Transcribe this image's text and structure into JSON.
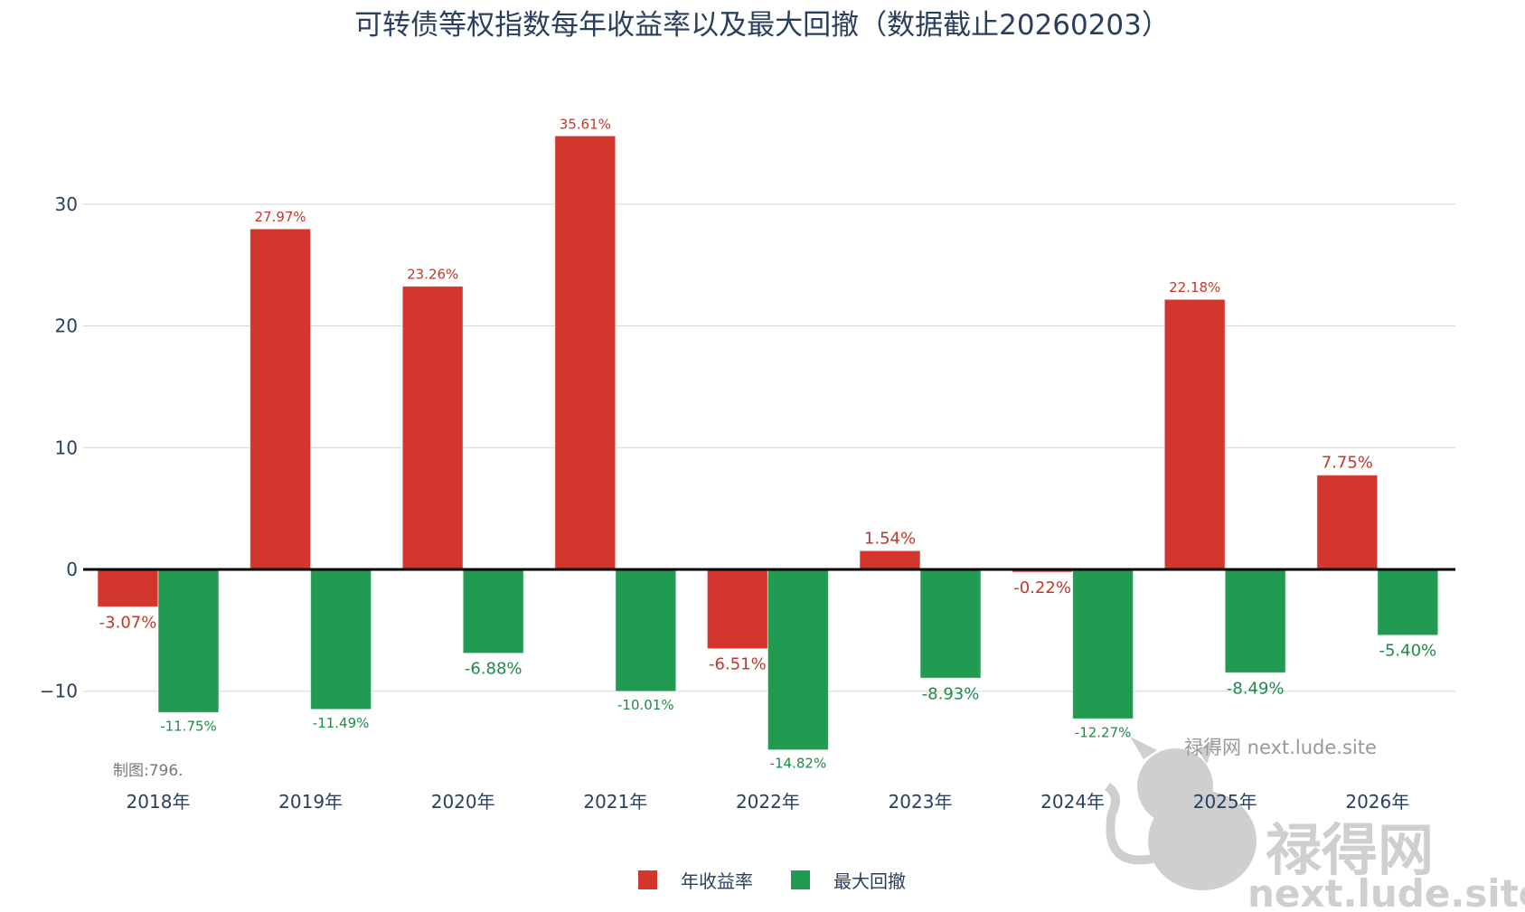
{
  "chart_data": {
    "type": "bar",
    "title": "可转债等权指数每年收益率以及最大回撤（数据截止20260203）",
    "categories": [
      "2018年",
      "2019年",
      "2020年",
      "2021年",
      "2022年",
      "2023年",
      "2024年",
      "2025年",
      "2026年"
    ],
    "series": [
      {
        "name": "年收益率",
        "color": "#d3362d",
        "values": [
          -3.07,
          27.97,
          23.26,
          35.61,
          -6.51,
          1.54,
          -0.22,
          22.18,
          7.75
        ],
        "labels": [
          "-3.07%",
          "27.97%",
          "23.26%",
          "35.61%",
          "-6.51%",
          "1.54%",
          "-0.22%",
          "22.18%",
          "7.75%"
        ]
      },
      {
        "name": "最大回撤",
        "color": "#219a52",
        "values": [
          -11.75,
          -11.49,
          -6.88,
          -10.01,
          -14.82,
          -8.93,
          -12.27,
          -8.49,
          -5.4
        ],
        "labels": [
          "-11.75%",
          "-11.49%",
          "-6.88%",
          "-10.01%",
          "-14.82%",
          "-8.93%",
          "-12.27%",
          "-8.49%",
          "-5.40%"
        ]
      }
    ],
    "yticks": [
      -10,
      0,
      10,
      20,
      30
    ],
    "ytick_labels": [
      "−10",
      "0",
      "10",
      "20",
      "30"
    ],
    "ylim": [
      -16.5,
      38
    ],
    "grid": true,
    "legend_position": "bottom-center",
    "xlabel": "",
    "ylabel": ""
  },
  "credit": "制图:796.",
  "watermark": {
    "small": "禄得网 next.lude.site",
    "big_name": "禄得网",
    "big_url": "next.lude.site"
  }
}
